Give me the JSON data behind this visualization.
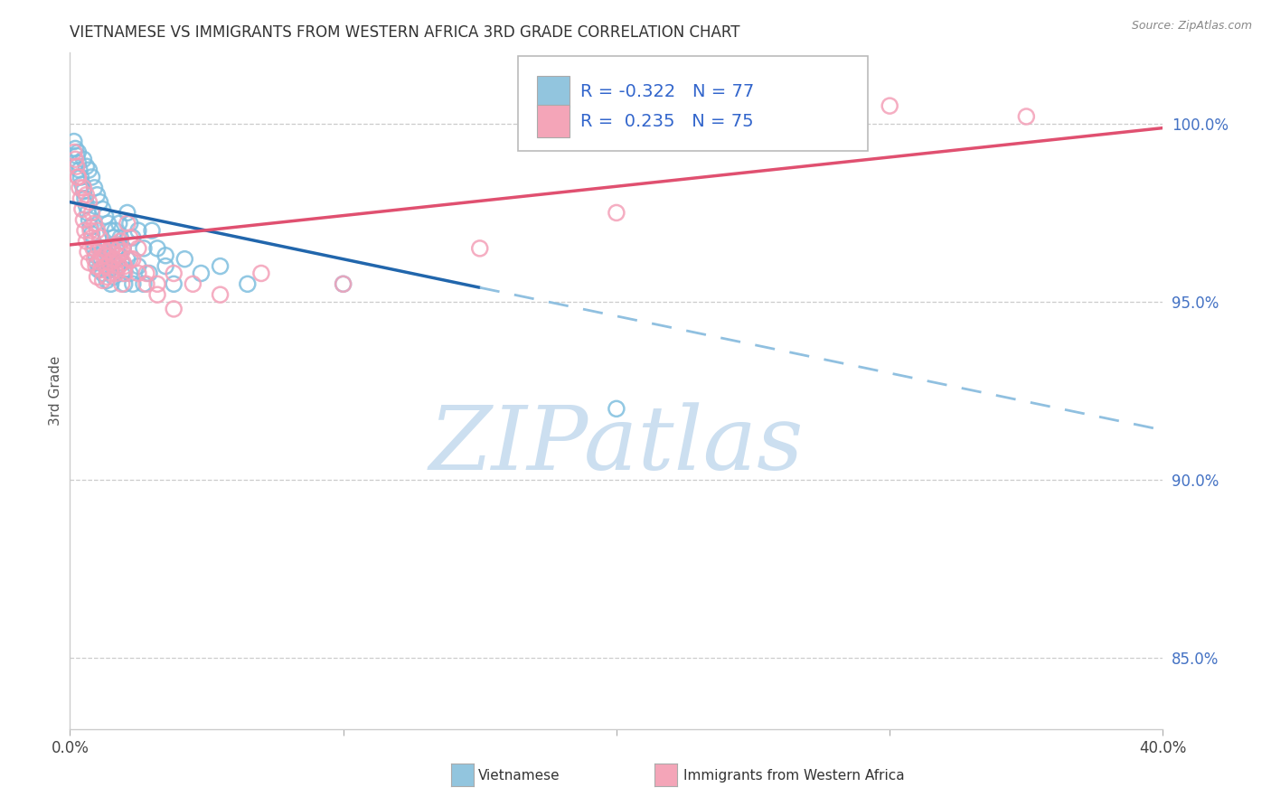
{
  "title": "VIETNAMESE VS IMMIGRANTS FROM WESTERN AFRICA 3RD GRADE CORRELATION CHART",
  "source": "Source: ZipAtlas.com",
  "ylabel": "3rd Grade",
  "r_vietnamese": -0.322,
  "n_vietnamese": 77,
  "r_western_africa": 0.235,
  "n_western_africa": 75,
  "color_blue_scatter": "#7fbfdf",
  "color_pink_scatter": "#f4a0b8",
  "color_blue_line": "#2166ac",
  "color_pink_line": "#e05070",
  "color_blue_dashed": "#90c0e0",
  "watermark_color": "#ccdff0",
  "legend_color_blue": "#92c5de",
  "legend_color_pink": "#f4a5b8",
  "xlim": [
    0.0,
    40.0
  ],
  "ylim": [
    83.0,
    102.0
  ],
  "yticks": [
    85.0,
    90.0,
    95.0,
    100.0
  ],
  "xtick_positions": [
    0,
    10,
    20,
    30,
    40
  ],
  "blue_line_solid_x0": 0.0,
  "blue_line_solid_x1": 15.0,
  "blue_line_y_at_0": 97.8,
  "blue_line_slope": -0.16,
  "blue_dashed_x0": 15.0,
  "blue_dashed_x1": 40.0,
  "pink_line_x0": 0.0,
  "pink_line_x1": 40.0,
  "pink_line_y_at_0": 96.6,
  "pink_line_slope": 0.082,
  "blue_x": [
    0.3,
    0.5,
    0.6,
    0.7,
    0.8,
    0.9,
    1.0,
    1.1,
    1.2,
    1.3,
    1.4,
    1.5,
    1.6,
    1.7,
    1.8,
    1.9,
    2.0,
    2.1,
    2.2,
    2.3,
    2.5,
    2.7,
    2.9,
    3.2,
    3.5,
    3.8,
    4.2,
    4.8,
    5.5,
    6.5,
    0.15,
    0.2,
    0.25,
    0.3,
    0.35,
    0.4,
    0.45,
    0.5,
    0.55,
    0.6,
    0.65,
    0.7,
    0.75,
    0.8,
    0.85,
    0.9,
    0.95,
    1.0,
    1.05,
    1.1,
    1.15,
    1.2,
    1.25,
    1.3,
    1.35,
    1.4,
    1.45,
    1.5,
    1.55,
    1.6,
    1.65,
    1.7,
    1.75,
    1.8,
    1.85,
    1.9,
    1.95,
    2.0,
    2.1,
    2.2,
    2.3,
    2.5,
    2.7,
    3.0,
    3.5,
    10.0,
    20.0
  ],
  "blue_y": [
    99.2,
    99.0,
    98.8,
    98.7,
    98.5,
    98.2,
    98.0,
    97.8,
    97.6,
    97.4,
    97.2,
    97.0,
    96.8,
    96.5,
    96.3,
    96.1,
    95.9,
    97.5,
    97.2,
    96.8,
    97.0,
    96.5,
    95.8,
    96.5,
    96.3,
    95.5,
    96.2,
    95.8,
    96.0,
    95.5,
    99.5,
    99.3,
    99.1,
    98.9,
    98.7,
    98.5,
    98.3,
    98.1,
    97.9,
    97.7,
    97.5,
    97.3,
    97.1,
    96.9,
    96.7,
    96.5,
    96.3,
    96.1,
    95.9,
    96.5,
    96.2,
    95.8,
    96.5,
    96.0,
    95.6,
    96.3,
    95.9,
    95.5,
    96.1,
    95.7,
    97.0,
    96.5,
    96.0,
    97.2,
    96.8,
    95.8,
    96.5,
    95.5,
    96.2,
    95.8,
    95.5,
    96.0,
    95.5,
    97.0,
    96.0,
    95.5,
    92.0
  ],
  "pink_x": [
    0.3,
    0.5,
    0.6,
    0.7,
    0.8,
    0.9,
    1.0,
    1.1,
    1.2,
    1.3,
    1.4,
    1.5,
    1.6,
    1.7,
    1.8,
    1.9,
    2.0,
    2.1,
    2.2,
    2.3,
    2.5,
    2.8,
    3.2,
    3.8,
    4.5,
    5.5,
    7.0,
    10.0,
    15.0,
    20.0,
    0.15,
    0.2,
    0.25,
    0.3,
    0.35,
    0.4,
    0.45,
    0.5,
    0.55,
    0.6,
    0.65,
    0.7,
    0.75,
    0.8,
    0.85,
    0.9,
    0.95,
    1.0,
    1.05,
    1.1,
    1.15,
    1.2,
    1.25,
    1.3,
    1.35,
    1.4,
    1.45,
    1.5,
    1.55,
    1.6,
    1.65,
    1.7,
    1.75,
    1.8,
    1.85,
    1.9,
    1.95,
    2.0,
    2.2,
    2.5,
    2.8,
    3.2,
    3.8,
    30.0,
    35.0
  ],
  "pink_y": [
    98.5,
    98.2,
    98.0,
    97.8,
    97.5,
    97.2,
    97.0,
    96.8,
    96.5,
    96.3,
    96.0,
    96.5,
    96.2,
    95.8,
    96.5,
    95.5,
    96.0,
    97.2,
    96.8,
    96.2,
    96.5,
    95.8,
    95.5,
    95.8,
    95.5,
    95.2,
    95.8,
    95.5,
    96.5,
    97.5,
    99.2,
    99.0,
    98.8,
    98.5,
    98.2,
    97.9,
    97.6,
    97.3,
    97.0,
    96.7,
    96.4,
    96.1,
    97.0,
    96.8,
    96.5,
    96.2,
    96.0,
    95.7,
    96.5,
    96.2,
    95.9,
    95.6,
    96.3,
    96.0,
    95.7,
    96.4,
    96.1,
    95.8,
    96.5,
    96.2,
    95.9,
    96.6,
    96.3,
    96.0,
    96.7,
    96.4,
    96.1,
    95.8,
    96.2,
    95.8,
    95.5,
    95.2,
    94.8,
    100.5,
    100.2
  ]
}
